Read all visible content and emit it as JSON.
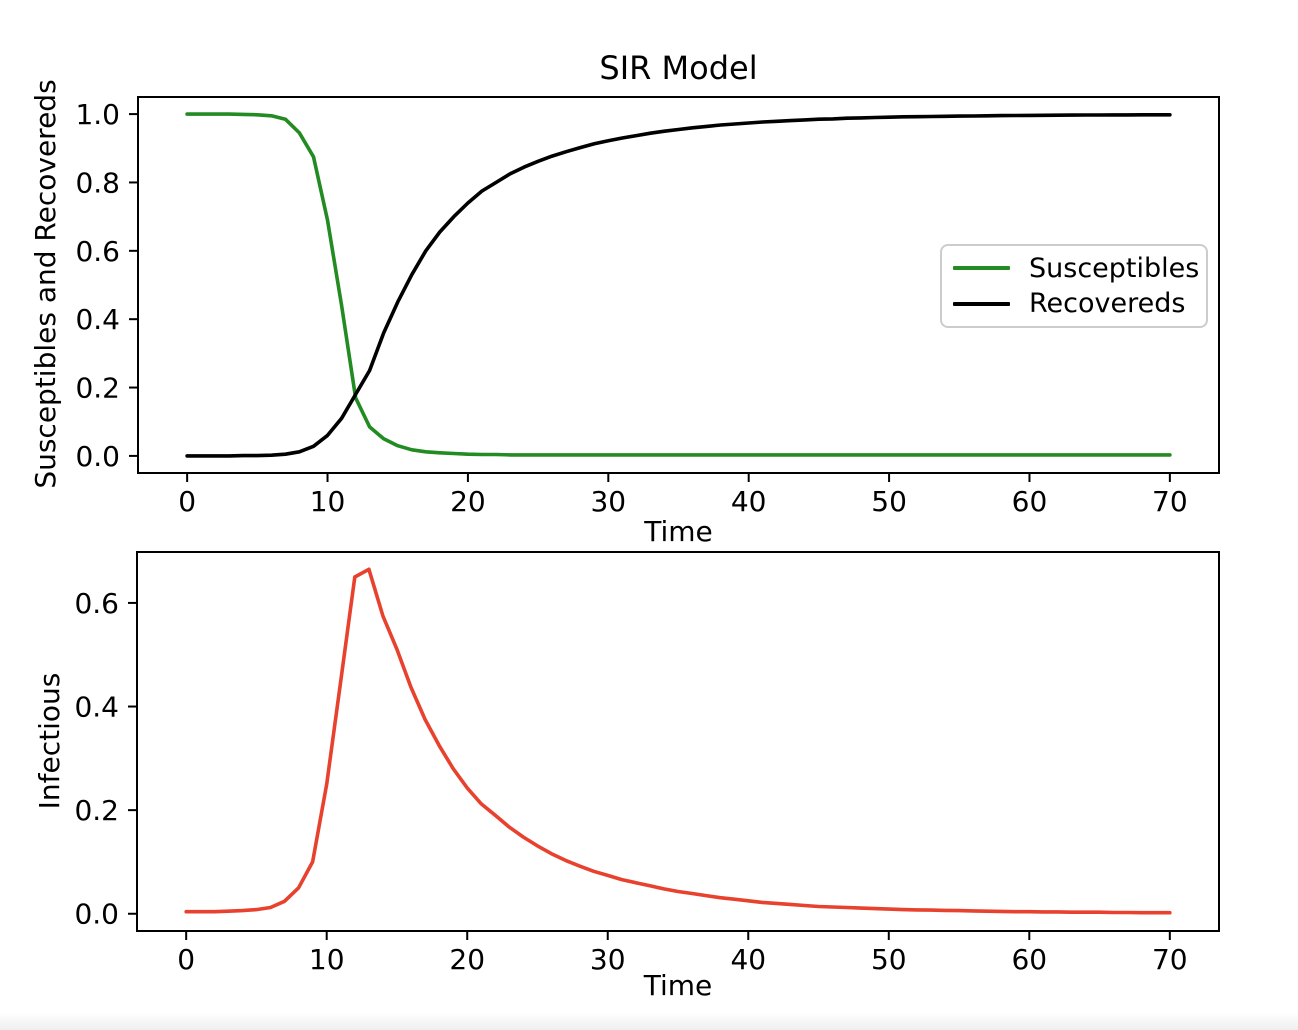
{
  "figure": {
    "background": "#ffffff",
    "axis_color": "#000000",
    "text_color": "#000000",
    "footer_band_color": "#efefef"
  },
  "chart_data": [
    {
      "type": "line",
      "title": "SIR Model",
      "xlabel": "Time",
      "ylabel": "Susceptibles and Recovereds",
      "xlim": [
        -3.5,
        73.5
      ],
      "ylim": [
        -0.05,
        1.05
      ],
      "grid": false,
      "xticks": [
        0,
        10,
        20,
        30,
        40,
        50,
        60,
        70
      ],
      "xtick_labels": [
        "0",
        "10",
        "20",
        "30",
        "40",
        "50",
        "60",
        "70"
      ],
      "yticks": [
        0.0,
        0.2,
        0.4,
        0.6,
        0.8,
        1.0
      ],
      "ytick_labels": [
        "0.0",
        "0.2",
        "0.4",
        "0.6",
        "0.8",
        "1.0"
      ],
      "legend": {
        "visible": true,
        "location": "center right"
      },
      "x": [
        0,
        1,
        2,
        3,
        4,
        5,
        6,
        7,
        8,
        9,
        10,
        11,
        12,
        13,
        14,
        15,
        16,
        17,
        18,
        19,
        20,
        21,
        22,
        23,
        24,
        25,
        26,
        27,
        28,
        29,
        30,
        31,
        32,
        33,
        34,
        35,
        36,
        37,
        38,
        39,
        40,
        41,
        42,
        43,
        44,
        45,
        46,
        47,
        48,
        49,
        50,
        51,
        52,
        53,
        54,
        55,
        56,
        57,
        58,
        59,
        60,
        61,
        62,
        63,
        64,
        65,
        66,
        67,
        68,
        69,
        70
      ],
      "series": [
        {
          "name": "Susceptibles",
          "color": "#228B22",
          "values": [
            1.0,
            1.0,
            1.0,
            1.0,
            0.999,
            0.998,
            0.995,
            0.985,
            0.945,
            0.875,
            0.69,
            0.44,
            0.17,
            0.085,
            0.05,
            0.03,
            0.018,
            0.012,
            0.009,
            0.007,
            0.005,
            0.004,
            0.004,
            0.003,
            0.003,
            0.003,
            0.003,
            0.003,
            0.003,
            0.003,
            0.003,
            0.003,
            0.003,
            0.003,
            0.003,
            0.003,
            0.003,
            0.003,
            0.003,
            0.003,
            0.003,
            0.003,
            0.003,
            0.003,
            0.003,
            0.003,
            0.003,
            0.003,
            0.003,
            0.003,
            0.003,
            0.003,
            0.003,
            0.003,
            0.003,
            0.003,
            0.003,
            0.003,
            0.003,
            0.003,
            0.003,
            0.003,
            0.003,
            0.003,
            0.003,
            0.003,
            0.003,
            0.003,
            0.003,
            0.003,
            0.003
          ]
        },
        {
          "name": "Recovereds",
          "color": "#000000",
          "values": [
            0.0,
            0.0,
            0.0,
            0.0,
            0.001,
            0.001,
            0.002,
            0.005,
            0.012,
            0.028,
            0.06,
            0.11,
            0.18,
            0.25,
            0.36,
            0.45,
            0.53,
            0.6,
            0.655,
            0.7,
            0.74,
            0.775,
            0.8,
            0.825,
            0.845,
            0.862,
            0.877,
            0.89,
            0.902,
            0.913,
            0.922,
            0.93,
            0.937,
            0.944,
            0.95,
            0.955,
            0.96,
            0.964,
            0.968,
            0.971,
            0.974,
            0.977,
            0.979,
            0.981,
            0.983,
            0.985,
            0.986,
            0.988,
            0.989,
            0.99,
            0.991,
            0.992,
            0.9925,
            0.993,
            0.9935,
            0.994,
            0.9945,
            0.995,
            0.9955,
            0.996,
            0.9962,
            0.9965,
            0.9968,
            0.997,
            0.9972,
            0.9974,
            0.9976,
            0.9977,
            0.9978,
            0.9979,
            0.998
          ]
        }
      ]
    },
    {
      "type": "line",
      "title": "",
      "xlabel": "Time",
      "ylabel": "Infectious",
      "xlim": [
        -3.5,
        73.5
      ],
      "ylim": [
        -0.0333,
        0.6983
      ],
      "grid": false,
      "xticks": [
        0,
        10,
        20,
        30,
        40,
        50,
        60,
        70
      ],
      "xtick_labels": [
        "0",
        "10",
        "20",
        "30",
        "40",
        "50",
        "60",
        "70"
      ],
      "yticks": [
        0.0,
        0.2,
        0.4,
        0.6
      ],
      "ytick_labels": [
        "0.0",
        "0.2",
        "0.4",
        "0.6"
      ],
      "legend": {
        "visible": false
      },
      "x": [
        0,
        1,
        2,
        3,
        4,
        5,
        6,
        7,
        8,
        9,
        10,
        11,
        12,
        13,
        14,
        15,
        16,
        17,
        18,
        19,
        20,
        21,
        22,
        23,
        24,
        25,
        26,
        27,
        28,
        29,
        30,
        31,
        32,
        33,
        34,
        35,
        36,
        37,
        38,
        39,
        40,
        41,
        42,
        43,
        44,
        45,
        46,
        47,
        48,
        49,
        50,
        51,
        52,
        53,
        54,
        55,
        56,
        57,
        58,
        59,
        60,
        61,
        62,
        63,
        64,
        65,
        66,
        67,
        68,
        69,
        70
      ],
      "series": [
        {
          "name": "Infectious",
          "color": "#E8412D",
          "values": [
            0.004,
            0.004,
            0.004,
            0.005,
            0.006,
            0.008,
            0.012,
            0.024,
            0.05,
            0.1,
            0.25,
            0.45,
            0.65,
            0.665,
            0.575,
            0.51,
            0.437,
            0.375,
            0.325,
            0.28,
            0.243,
            0.212,
            0.19,
            0.167,
            0.148,
            0.131,
            0.116,
            0.103,
            0.092,
            0.082,
            0.074,
            0.066,
            0.06,
            0.054,
            0.048,
            0.043,
            0.039,
            0.035,
            0.031,
            0.028,
            0.025,
            0.022,
            0.02,
            0.018,
            0.016,
            0.014,
            0.013,
            0.012,
            0.011,
            0.01,
            0.009,
            0.008,
            0.0075,
            0.007,
            0.0065,
            0.006,
            0.0055,
            0.005,
            0.0045,
            0.004,
            0.004,
            0.0035,
            0.0035,
            0.003,
            0.003,
            0.003,
            0.0025,
            0.0025,
            0.002,
            0.002,
            0.002
          ]
        }
      ]
    }
  ]
}
